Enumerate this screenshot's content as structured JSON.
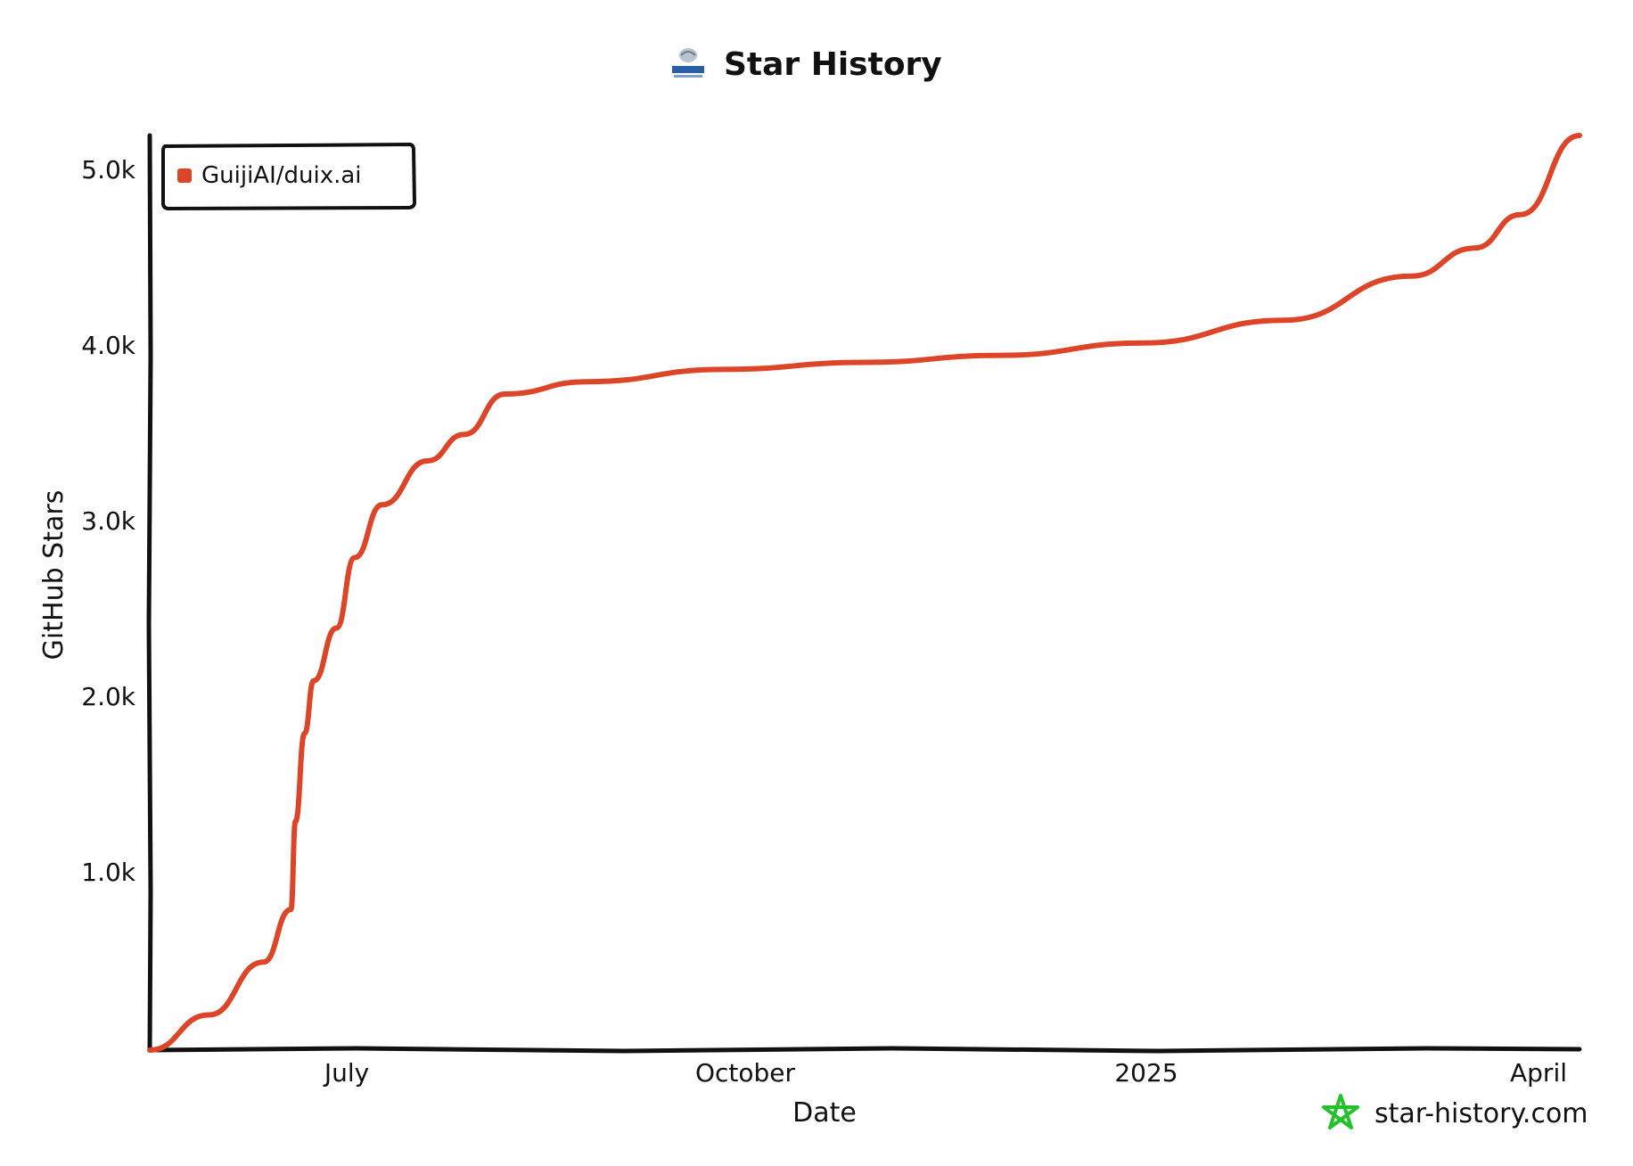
{
  "chart_data": {
    "type": "line",
    "title": "Star History",
    "xlabel": "Date",
    "ylabel": "GitHub Stars",
    "x_ticks": [
      "July",
      "October",
      "2025",
      "April"
    ],
    "y_ticks": [
      "1.0k",
      "2.0k",
      "3.0k",
      "4.0k",
      "5.0k"
    ],
    "y_tick_values": [
      1000,
      2000,
      3000,
      4000,
      5000
    ],
    "ylim": [
      0,
      5200
    ],
    "grid": false,
    "legend": "top-left",
    "series": [
      {
        "name": "GuijiAI/duix.ai",
        "color": "#dd4528",
        "points": [
          {
            "x": "2024-05-28",
            "y": 0
          },
          {
            "x": "2024-06-10",
            "y": 200
          },
          {
            "x": "2024-06-22",
            "y": 500
          },
          {
            "x": "2024-06-28",
            "y": 800
          },
          {
            "x": "2024-06-29",
            "y": 1300
          },
          {
            "x": "2024-07-01",
            "y": 1800
          },
          {
            "x": "2024-07-03",
            "y": 2100
          },
          {
            "x": "2024-07-08",
            "y": 2400
          },
          {
            "x": "2024-07-12",
            "y": 2800
          },
          {
            "x": "2024-07-18",
            "y": 3100
          },
          {
            "x": "2024-07-28",
            "y": 3350
          },
          {
            "x": "2024-08-05",
            "y": 3500
          },
          {
            "x": "2024-08-14",
            "y": 3730
          },
          {
            "x": "2024-09-01",
            "y": 3800
          },
          {
            "x": "2024-10-01",
            "y": 3870
          },
          {
            "x": "2024-11-01",
            "y": 3910
          },
          {
            "x": "2024-12-01",
            "y": 3950
          },
          {
            "x": "2025-01-01",
            "y": 4020
          },
          {
            "x": "2025-02-01",
            "y": 4150
          },
          {
            "x": "2025-03-01",
            "y": 4400
          },
          {
            "x": "2025-03-15",
            "y": 4560
          },
          {
            "x": "2025-03-25",
            "y": 4750
          },
          {
            "x": "2025-04-07",
            "y": 5200
          }
        ]
      }
    ]
  },
  "footer": {
    "brand": "star-history.com",
    "brand_color": "#22c32a",
    "logo_icon": "guiji-logo-icon",
    "brand_icon": "star-icon"
  }
}
